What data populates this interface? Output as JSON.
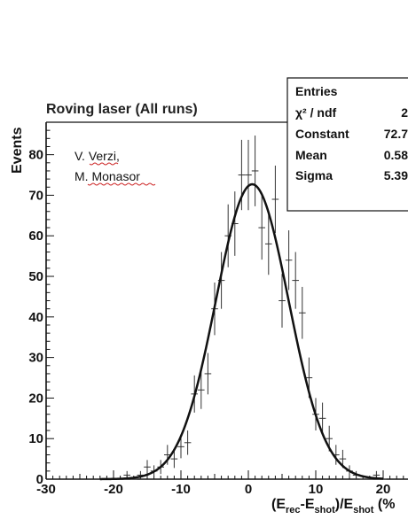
{
  "chart_data": {
    "type": "scatter",
    "title": "Roving laser (All runs)",
    "ylabel": "Events",
    "xlabel": {
      "main_a": "(E",
      "sub_a": "rec",
      "main_b": "-E",
      "sub_b": "shot",
      "main_c": ")/E",
      "sub_c": "shot",
      "main_d": " (%"
    },
    "xlim": [
      -30,
      25
    ],
    "ylim": [
      0,
      88
    ],
    "x_ticks": [
      -30,
      -20,
      -10,
      0,
      10,
      20
    ],
    "y_ticks": [
      0,
      10,
      20,
      30,
      40,
      50,
      60,
      70,
      80
    ],
    "annotation_lines": [
      "V. Verzi,",
      "M. Monasor"
    ],
    "stats": [
      {
        "label": "Entries",
        "value": ""
      },
      {
        "label": "χ² / ndf",
        "value": "2"
      },
      {
        "label": "Constant",
        "value": "72.7"
      },
      {
        "label": "Mean",
        "value": "0.58"
      },
      {
        "label": "Sigma",
        "value": "5.39"
      }
    ],
    "fit": {
      "function": "gaussian",
      "constant": 72.7,
      "mean": 0.58,
      "sigma": 5.39,
      "x_from": -22,
      "x_to": 20
    },
    "points": [
      {
        "x": -21,
        "y": 0
      },
      {
        "x": -20,
        "y": 0
      },
      {
        "x": -19,
        "y": 0
      },
      {
        "x": -18,
        "y": 1
      },
      {
        "x": -17,
        "y": 0
      },
      {
        "x": -16,
        "y": 1
      },
      {
        "x": -15,
        "y": 3
      },
      {
        "x": -14,
        "y": 2
      },
      {
        "x": -13,
        "y": 3
      },
      {
        "x": -12,
        "y": 6
      },
      {
        "x": -11,
        "y": 5
      },
      {
        "x": -10,
        "y": 8
      },
      {
        "x": -9,
        "y": 9
      },
      {
        "x": -8,
        "y": 21
      },
      {
        "x": -7,
        "y": 22
      },
      {
        "x": -6,
        "y": 26
      },
      {
        "x": -5,
        "y": 42
      },
      {
        "x": -4,
        "y": 49
      },
      {
        "x": -3,
        "y": 60
      },
      {
        "x": -2,
        "y": 63
      },
      {
        "x": -1,
        "y": 75
      },
      {
        "x": 0,
        "y": 75
      },
      {
        "x": 1,
        "y": 76
      },
      {
        "x": 2,
        "y": 62
      },
      {
        "x": 3,
        "y": 58
      },
      {
        "x": 4,
        "y": 69
      },
      {
        "x": 5,
        "y": 44
      },
      {
        "x": 6,
        "y": 54
      },
      {
        "x": 7,
        "y": 49
      },
      {
        "x": 8,
        "y": 41
      },
      {
        "x": 9,
        "y": 25
      },
      {
        "x": 10,
        "y": 16
      },
      {
        "x": 11,
        "y": 15
      },
      {
        "x": 12,
        "y": 10
      },
      {
        "x": 13,
        "y": 6
      },
      {
        "x": 14,
        "y": 5
      },
      {
        "x": 15,
        "y": 2
      },
      {
        "x": 16,
        "y": 1
      },
      {
        "x": 17,
        "y": 0
      },
      {
        "x": 18,
        "y": 0
      },
      {
        "x": 19,
        "y": 1
      },
      {
        "x": 20,
        "y": 0
      }
    ],
    "grid": false,
    "legend": "none",
    "colors": {
      "line": "#111111",
      "points": "#333333",
      "axis": "#111111",
      "background": "#ffffff"
    }
  }
}
